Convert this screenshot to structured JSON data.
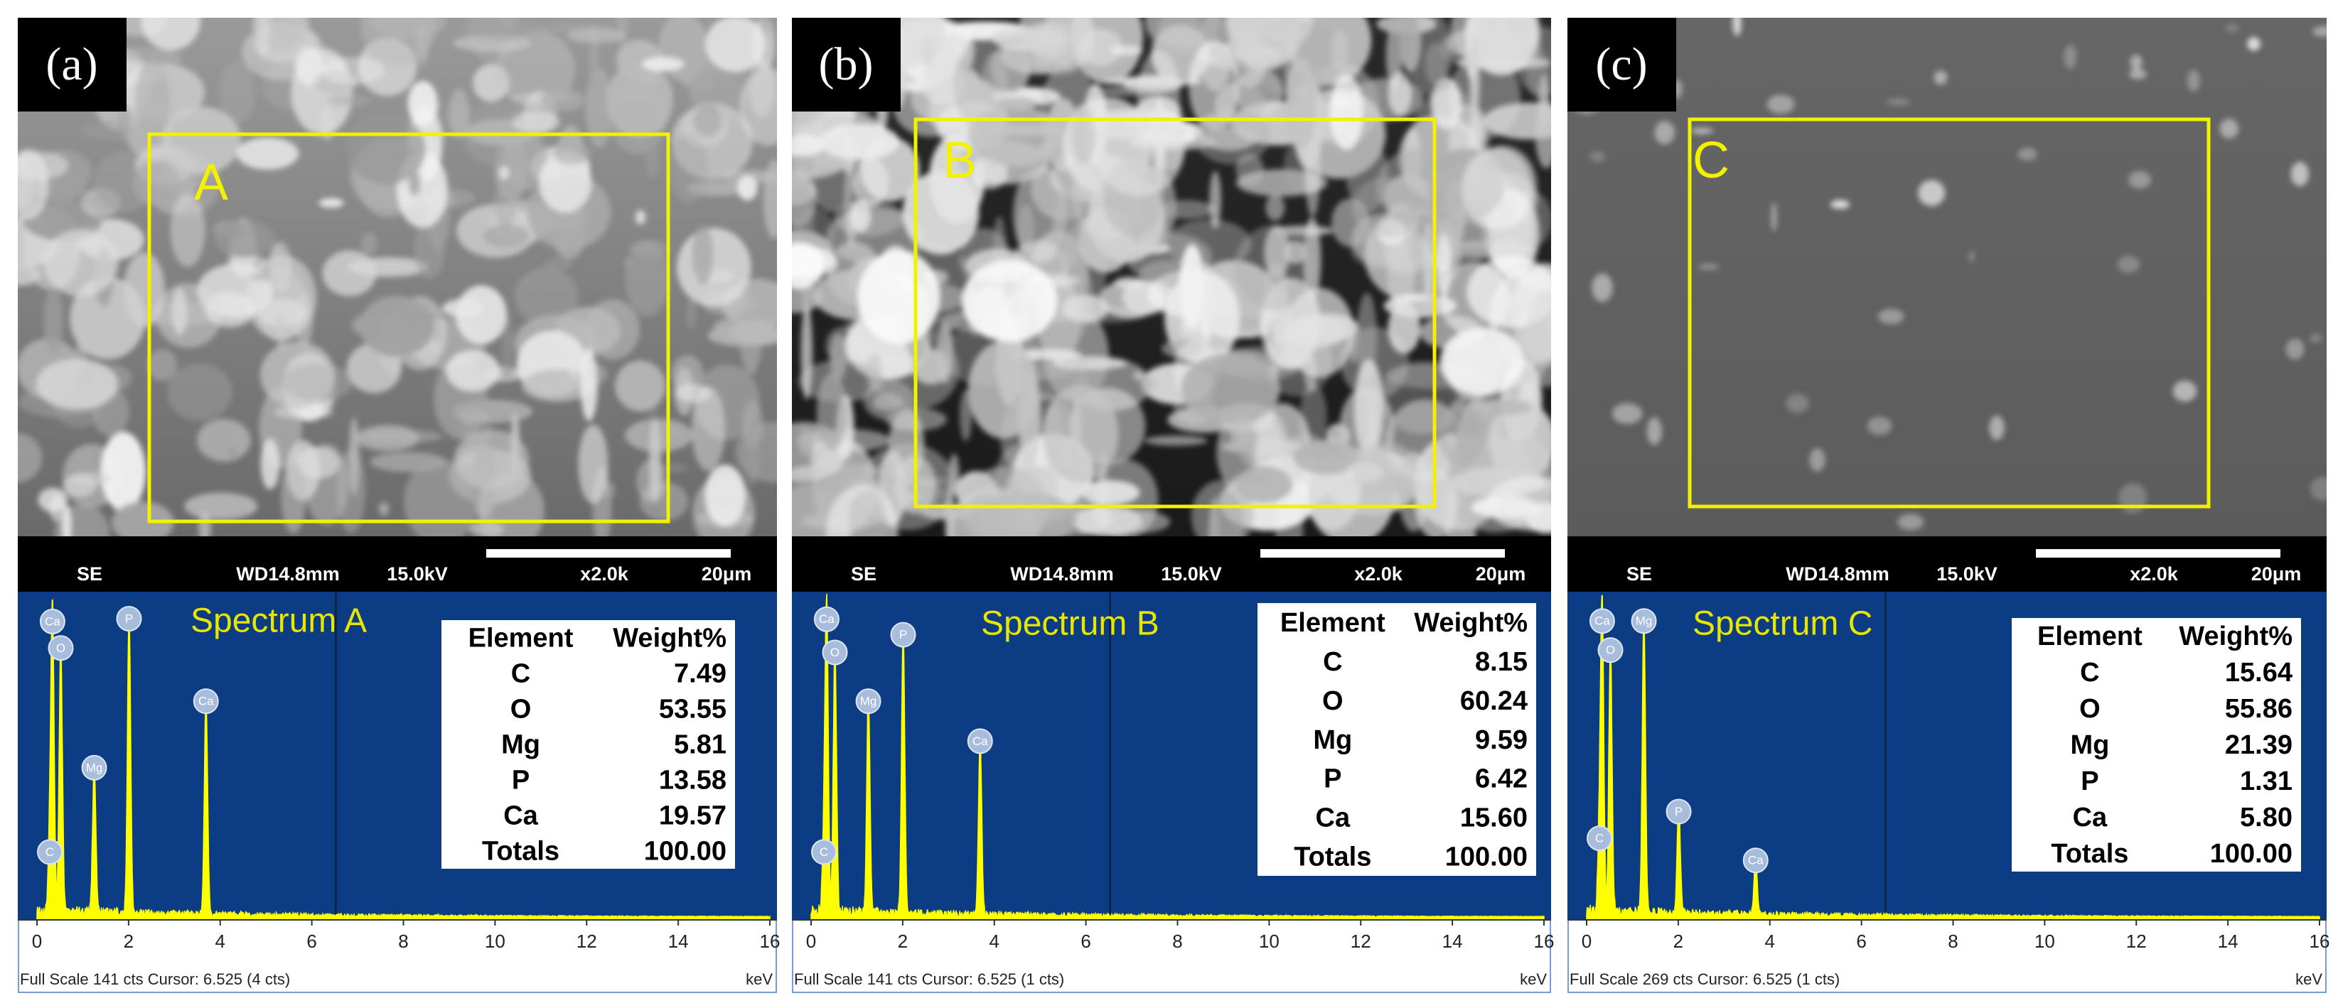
{
  "panels": [
    {
      "label": "(a)",
      "region": "A",
      "sem_bar": [
        "SE",
        "WD14.8mm",
        "15.0kV",
        "x2.0k",
        "20μm"
      ],
      "spectrum": {
        "title": "Spectrum A",
        "xlim": [
          0,
          16
        ],
        "xticks": [
          0,
          2,
          4,
          6,
          8,
          10,
          12,
          14,
          16
        ],
        "ylim": [
          0,
          141
        ],
        "cursor": 6.525,
        "peaks": [
          {
            "label": "Ca",
            "x": 0.34,
            "y": 134
          },
          {
            "label": "O",
            "x": 0.52,
            "y": 122
          },
          {
            "label": "C",
            "x": 0.28,
            "y": 30
          },
          {
            "label": "Mg",
            "x": 1.25,
            "y": 68
          },
          {
            "label": "P",
            "x": 2.01,
            "y": 136
          },
          {
            "label": "Ca",
            "x": 3.69,
            "y": 98
          }
        ],
        "footer": "Full Scale 141 cts Cursor: 6.525  (4 cts)",
        "unit": "keV"
      },
      "table": {
        "header": [
          "Element",
          "Weight%"
        ],
        "rows": [
          [
            "C",
            "7.49"
          ],
          [
            "O",
            "53.55"
          ],
          [
            "Mg",
            "5.81"
          ],
          [
            "P",
            "13.58"
          ],
          [
            "Ca",
            "19.57"
          ],
          [
            "Totals",
            "100.00"
          ]
        ]
      }
    },
    {
      "label": "(b)",
      "region": "B",
      "sem_bar": [
        "SE",
        "WD14.8mm",
        "15.0kV",
        "x2.0k",
        "20μm"
      ],
      "spectrum": {
        "title": "Spectrum B",
        "xlim": [
          0,
          16
        ],
        "xticks": [
          0,
          2,
          4,
          6,
          8,
          10,
          12,
          14,
          16
        ],
        "ylim": [
          0,
          141
        ],
        "cursor": 6.525,
        "peaks": [
          {
            "label": "Ca",
            "x": 0.34,
            "y": 135
          },
          {
            "label": "O",
            "x": 0.52,
            "y": 120
          },
          {
            "label": "C",
            "x": 0.28,
            "y": 30
          },
          {
            "label": "Mg",
            "x": 1.25,
            "y": 98
          },
          {
            "label": "P",
            "x": 2.01,
            "y": 128
          },
          {
            "label": "Ca",
            "x": 3.69,
            "y": 80
          }
        ],
        "footer": "Full Scale 141 cts Cursor: 6.525  (1 cts)",
        "unit": "keV"
      },
      "table": {
        "header": [
          "Element",
          "Weight%"
        ],
        "rows": [
          [
            "C",
            "8.15"
          ],
          [
            "O",
            "60.24"
          ],
          [
            "Mg",
            "9.59"
          ],
          [
            "P",
            "6.42"
          ],
          [
            "Ca",
            "15.60"
          ],
          [
            "Totals",
            "100.00"
          ]
        ]
      }
    },
    {
      "label": "(c)",
      "region": "C",
      "sem_bar": [
        "SE",
        "WD14.8mm",
        "15.0kV",
        "x2.0k",
        "20μm"
      ],
      "spectrum": {
        "title": "Spectrum C",
        "xlim": [
          0,
          16
        ],
        "xticks": [
          0,
          2,
          4,
          6,
          8,
          10,
          12,
          14,
          16
        ],
        "ylim": [
          0,
          269
        ],
        "cursor": 6.525,
        "peaks": [
          {
            "label": "Ca",
            "x": 0.34,
            "y": 256
          },
          {
            "label": "O",
            "x": 0.52,
            "y": 231
          },
          {
            "label": "Mg",
            "x": 1.25,
            "y": 256
          },
          {
            "label": "C",
            "x": 0.28,
            "y": 69
          },
          {
            "label": "P",
            "x": 2.01,
            "y": 92
          },
          {
            "label": "Ca",
            "x": 3.69,
            "y": 50
          }
        ],
        "footer": "Full Scale 269 cts Cursor: 6.525  (1 cts)",
        "unit": "keV"
      },
      "table": {
        "header": [
          "Element",
          "Weight%"
        ],
        "rows": [
          [
            "C",
            "15.64"
          ],
          [
            "O",
            "55.86"
          ],
          [
            "Mg",
            "21.39"
          ],
          [
            "P",
            "1.31"
          ],
          [
            "Ca",
            "5.80"
          ],
          [
            "Totals",
            "100.00"
          ]
        ]
      }
    }
  ]
}
